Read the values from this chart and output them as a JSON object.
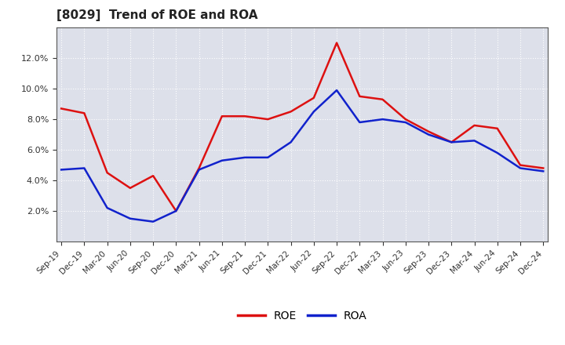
{
  "title": "[8029]  Trend of ROE and ROA",
  "x_labels": [
    "Sep-19",
    "Dec-19",
    "Mar-20",
    "Jun-20",
    "Sep-20",
    "Dec-20",
    "Mar-21",
    "Jun-21",
    "Sep-21",
    "Dec-21",
    "Mar-22",
    "Jun-22",
    "Sep-22",
    "Dec-22",
    "Mar-23",
    "Jun-23",
    "Sep-23",
    "Dec-23",
    "Mar-24",
    "Jun-24",
    "Sep-24",
    "Dec-24"
  ],
  "roe": [
    8.7,
    8.4,
    4.5,
    3.5,
    4.3,
    2.0,
    4.8,
    8.2,
    8.2,
    8.0,
    8.5,
    9.4,
    13.0,
    9.5,
    9.3,
    8.0,
    7.2,
    6.5,
    7.6,
    7.4,
    5.0,
    4.8
  ],
  "roa": [
    4.7,
    4.8,
    2.2,
    1.5,
    1.3,
    2.0,
    4.7,
    5.3,
    5.5,
    5.5,
    6.5,
    8.5,
    9.9,
    7.8,
    8.0,
    7.8,
    7.0,
    6.5,
    6.6,
    5.8,
    4.8,
    4.6
  ],
  "roe_color": "#dd1111",
  "roa_color": "#1122cc",
  "bg_color": "#ffffff",
  "plot_bg_color": "#dde0ea",
  "grid_color": "#ffffff",
  "ylim": [
    0,
    14
  ],
  "yticks": [
    2,
    4,
    6,
    8,
    10,
    12
  ],
  "title_fontsize": 11,
  "legend_labels": [
    "ROE",
    "ROA"
  ]
}
